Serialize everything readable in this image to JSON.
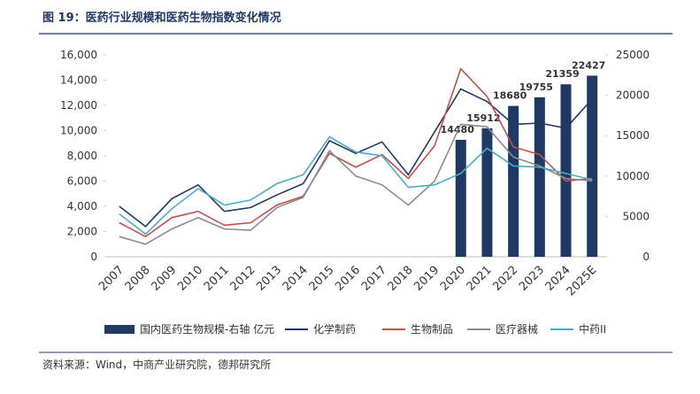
{
  "chart_data": {
    "type": "bar-line",
    "title": "图 19：医药行业规模和医药生物指数变化情况",
    "source": "资料来源：Wind，中商产业研究院，德邦研究所",
    "categories": [
      "2007",
      "2008",
      "2009",
      "2010",
      "2011",
      "2012",
      "2013",
      "2014",
      "2015",
      "2016",
      "2017",
      "2018",
      "2019",
      "2020",
      "2021",
      "2022",
      "2023",
      "2024",
      "2025E"
    ],
    "ylim": [
      0,
      16000
    ],
    "yticks": [
      0,
      {
        "value": 2000,
        "label": "2,000"
      },
      {
        "value": 4000,
        "label": "4,000"
      },
      {
        "value": 6000,
        "label": "6,000"
      },
      {
        "value": 8000,
        "label": "8,000"
      },
      {
        "value": 10000,
        "label": "10,000"
      },
      {
        "value": 12000,
        "label": "12,000"
      },
      {
        "value": 14000,
        "label": "14,000"
      },
      {
        "value": 16000,
        "label": "16,000"
      }
    ],
    "y2lim": [
      0,
      25000
    ],
    "y2ticks": [
      0,
      5000,
      10000,
      15000,
      20000,
      25000
    ],
    "series": [
      {
        "name": "国内医药生物规模-右轴 亿元",
        "type": "bar",
        "axis": "y2",
        "color": "#1f3864",
        "values": [
          null,
          null,
          null,
          null,
          null,
          null,
          null,
          null,
          null,
          null,
          null,
          null,
          null,
          14480,
          15912,
          18680,
          19755,
          21359,
          22427
        ]
      },
      {
        "name": "化学制药",
        "type": "line",
        "color": "#1f3864",
        "values": [
          4000,
          2400,
          4600,
          5700,
          3600,
          3900,
          4900,
          5800,
          9200,
          8200,
          9100,
          6500,
          9900,
          13300,
          12300,
          10500,
          10600,
          10200,
          12500
        ]
      },
      {
        "name": "生物制品",
        "type": "line",
        "color": "#c0504d",
        "values": [
          2700,
          1600,
          3100,
          3600,
          2500,
          2700,
          4100,
          4800,
          8200,
          7100,
          8100,
          6200,
          8800,
          14900,
          12700,
          8700,
          8100,
          6000,
          6200
        ]
      },
      {
        "name": "医疗器械",
        "type": "line",
        "color": "#8c8c8c",
        "values": [
          1600,
          1000,
          2200,
          3100,
          2200,
          2100,
          3900,
          4700,
          8400,
          6400,
          5700,
          4100,
          6000,
          10500,
          10300,
          7900,
          7200,
          6200,
          6000
        ]
      },
      {
        "name": "中药II",
        "type": "line",
        "color": "#4bacc6",
        "values": [
          3400,
          1800,
          3800,
          5400,
          4100,
          4500,
          5800,
          6500,
          9500,
          8300,
          8000,
          5500,
          5700,
          6600,
          8600,
          7200,
          7100,
          6600,
          6100
        ]
      }
    ]
  }
}
